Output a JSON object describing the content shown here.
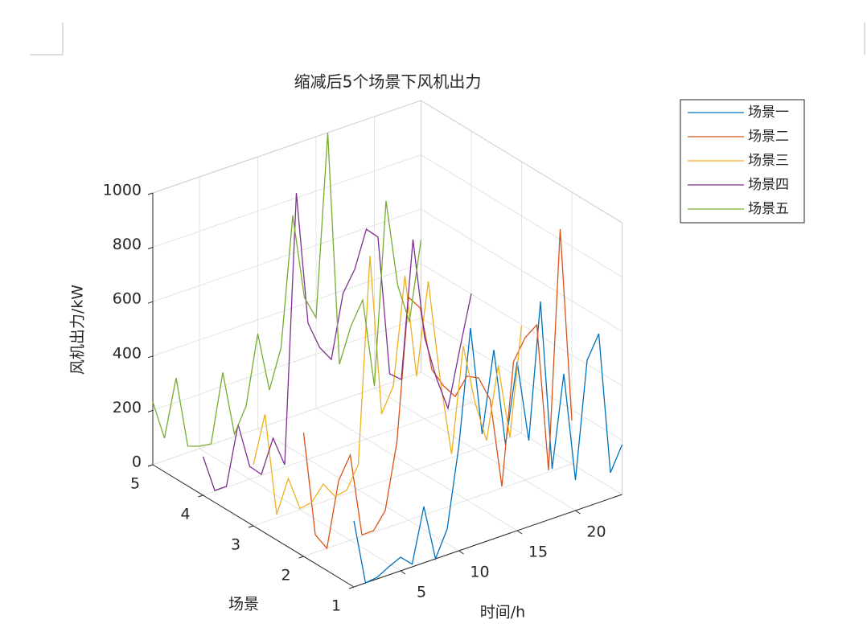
{
  "chart_data": {
    "type": "line3d",
    "title": "缩减后5个场景下风机出力",
    "xlabel": "时间/h",
    "ylabel": "场景",
    "zlabel": "风机出力/kW",
    "x": [
      1,
      2,
      3,
      4,
      5,
      6,
      7,
      8,
      9,
      10,
      11,
      12,
      13,
      14,
      15,
      16,
      17,
      18,
      19,
      20,
      21,
      22,
      23,
      24
    ],
    "xlim": [
      1,
      24
    ],
    "xticks": [
      5,
      10,
      15,
      20
    ],
    "ylim": [
      1,
      5
    ],
    "yticks": [
      1,
      2,
      3,
      4,
      5
    ],
    "zlim": [
      0,
      1000
    ],
    "zticks": [
      0,
      200,
      400,
      600,
      800,
      1000
    ],
    "grid": true,
    "legend": "outside-top-right",
    "series": [
      {
        "name": "场景一",
        "color": "#0072BD",
        "y": 1,
        "values": [
          243,
          0,
          6,
          30,
          50,
          10,
          207,
          0,
          95,
          385,
          805,
          400,
          695,
          331,
          621,
          317,
          814,
          183,
          518,
          112,
          538,
          621,
          95,
          183
        ]
      },
      {
        "name": "场景二",
        "color": "#D95319",
        "y": 2,
        "values": [
          456,
          65,
          0,
          234,
          314,
          5,
          6,
          65,
          302,
          820,
          766,
          524,
          450,
          396,
          456,
          435,
          340,
          6,
          450,
          524,
          556,
          6,
          879,
          160
        ]
      },
      {
        "name": "场景三",
        "color": "#EDB120",
        "y": 3,
        "values": [
          225,
          396,
          12,
          130,
          5,
          12,
          65,
          5,
          12,
          92,
          846,
          249,
          337,
          728,
          343,
          678,
          308,
          12,
          396,
          175,
          18,
          278,
          0,
          396
        ]
      },
      {
        "name": "场景四",
        "color": "#7E2F8E",
        "y": 4,
        "values": [
          142,
          3,
          3,
          216,
          47,
          3,
          121,
          9,
          994,
          500,
          396,
          337,
          565,
          639,
          772,
          728,
          210,
          175,
          675,
          299,
          136,
          9,
          210,
          402
        ]
      },
      {
        "name": "场景五",
        "color": "#77AC30",
        "y": 5,
        "values": [
          231,
          83,
          290,
          24,
          9,
          3,
          251,
          9,
          98,
          349,
          127,
          269,
          740,
          423,
          334,
          1000,
          133,
          260,
          340,
          9,
          675,
          349,
          201,
          488
        ]
      }
    ]
  }
}
